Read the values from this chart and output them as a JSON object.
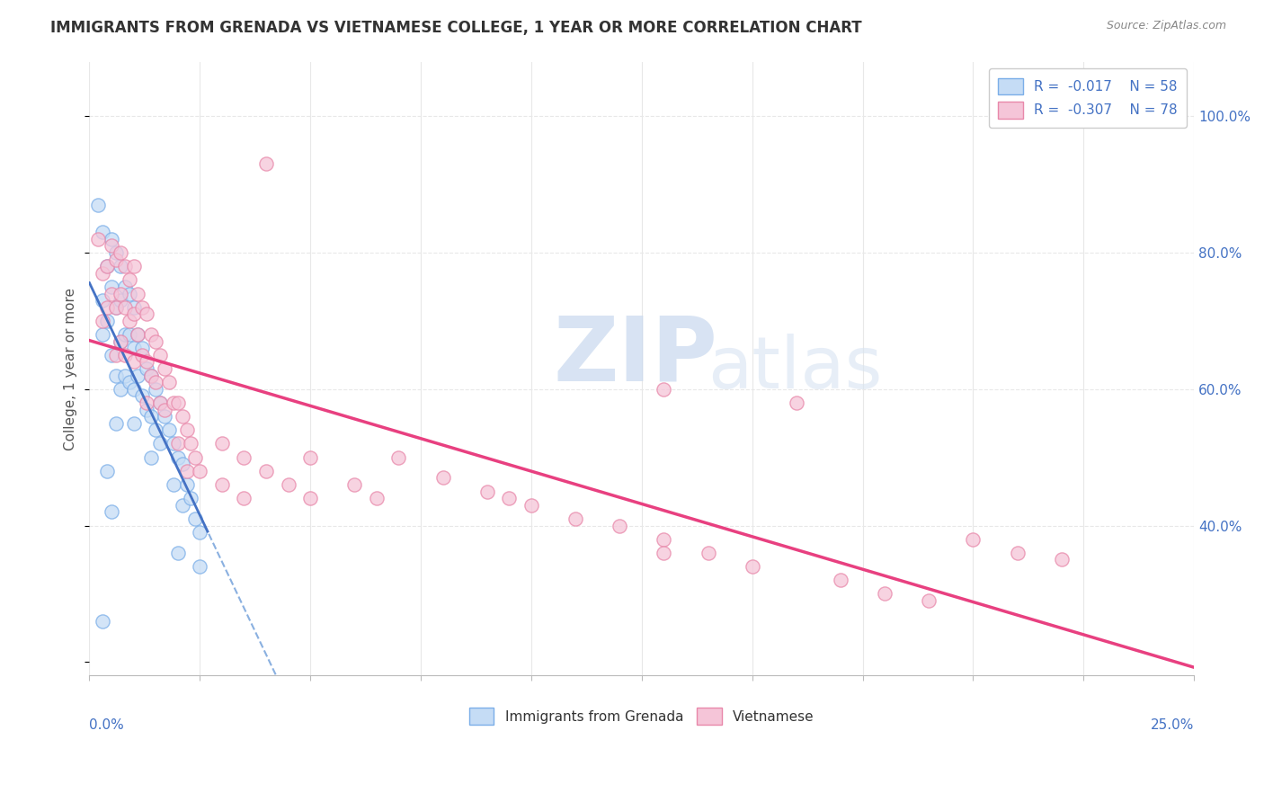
{
  "title": "IMMIGRANTS FROM GRENADA VS VIETNAMESE COLLEGE, 1 YEAR OR MORE CORRELATION CHART",
  "source": "Source: ZipAtlas.com",
  "ylabel": "College, 1 year or more",
  "right_ytick_vals": [
    0.4,
    0.6,
    0.8,
    1.0
  ],
  "right_ytick_labels": [
    "40.0%",
    "60.0%",
    "80.0%",
    "100.0%"
  ],
  "legend_entry1": "R =  -0.017    N = 58",
  "legend_entry2": "R =  -0.307    N = 78",
  "color_blue_fill": "#c5dcf5",
  "color_blue_edge": "#7baee8",
  "color_pink_fill": "#f5c5d8",
  "color_pink_edge": "#e888aa",
  "color_line_blue": "#4472c4",
  "color_line_pink": "#e84080",
  "color_dashed": "#8ab0e0",
  "watermark_zip": "ZIP",
  "watermark_atlas": "atlas",
  "xlim": [
    0.0,
    0.25
  ],
  "ylim": [
    0.18,
    1.08
  ],
  "background_color": "#ffffff",
  "grid_color": "#e8e8e8",
  "title_color": "#333333",
  "axis_label_color": "#4472c4",
  "ylabel_color": "#555555"
}
